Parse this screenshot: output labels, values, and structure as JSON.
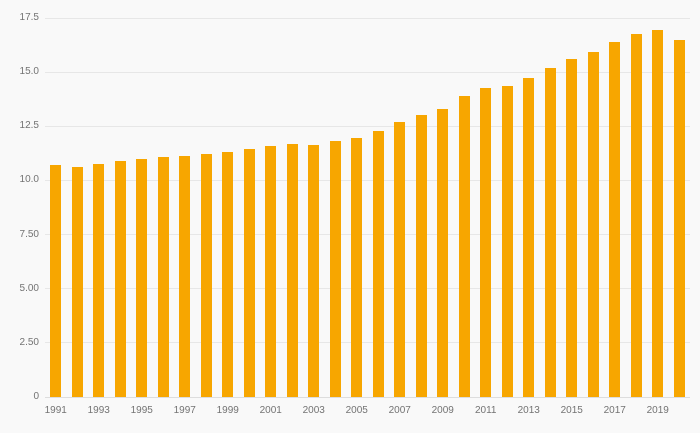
{
  "chart_data": {
    "type": "bar",
    "x": [
      1991,
      1992,
      1993,
      1994,
      1995,
      1996,
      1997,
      1998,
      1999,
      2000,
      2001,
      2002,
      2003,
      2004,
      2005,
      2006,
      2007,
      2008,
      2009,
      2010,
      2011,
      2012,
      2013,
      2014,
      2015,
      2016,
      2017,
      2018,
      2019,
      2020
    ],
    "values": [
      10.7,
      10.6,
      10.75,
      10.9,
      11.0,
      11.1,
      11.15,
      11.2,
      11.3,
      11.45,
      11.6,
      11.7,
      11.65,
      11.8,
      11.95,
      12.3,
      12.7,
      13.0,
      13.3,
      13.9,
      14.25,
      14.35,
      14.75,
      15.2,
      15.6,
      15.95,
      16.4,
      16.75,
      16.95,
      16.5
    ],
    "ylim": [
      0,
      17.5
    ],
    "yticks": [
      0,
      2.5,
      5,
      7.5,
      10,
      12.5,
      15,
      17.5
    ],
    "ytick_labels": [
      "0",
      "2.50",
      "5.00",
      "7.50",
      "10.0",
      "12.5",
      "15.0",
      "17.5"
    ],
    "xtick_labels": [
      "1991",
      "1993",
      "1995",
      "1997",
      "1999",
      "2001",
      "2003",
      "2005",
      "2007",
      "2009",
      "2011",
      "2013",
      "2015",
      "2017",
      "2019"
    ],
    "title": "",
    "xlabel": "",
    "ylabel": "",
    "legend": "none",
    "grid": true,
    "bar_color": "#F7A600",
    "gridline_color": "#e7e7e7",
    "label_color": "#737373",
    "background_color": "#f9f9f9"
  }
}
